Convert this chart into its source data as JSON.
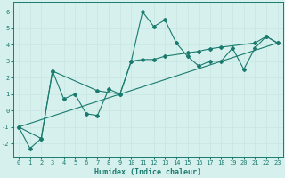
{
  "xlabel": "Humidex (Indice chaleur)",
  "bg_color": "#d6f0ed",
  "line_color": "#1a7a6e",
  "grid_color": "#c8e8e4",
  "spine_color": "#1a7a6e",
  "xlim": [
    -0.5,
    23.5
  ],
  "ylim": [
    -2.8,
    6.6
  ],
  "yticks": [
    -2,
    -1,
    0,
    1,
    2,
    3,
    4,
    5,
    6
  ],
  "xticks": [
    0,
    1,
    2,
    3,
    4,
    5,
    6,
    7,
    8,
    9,
    10,
    11,
    12,
    13,
    14,
    15,
    16,
    17,
    18,
    19,
    20,
    21,
    22,
    23
  ],
  "line1_x": [
    0,
    1,
    2,
    3,
    4,
    5,
    6,
    7,
    8,
    9,
    10,
    11,
    12,
    13,
    14,
    15,
    16,
    17,
    18,
    19,
    20,
    21,
    22,
    23
  ],
  "line1_y": [
    -1.0,
    -2.3,
    -1.7,
    2.4,
    0.7,
    1.0,
    -0.2,
    -0.3,
    1.3,
    1.0,
    3.0,
    6.0,
    5.1,
    5.5,
    4.1,
    3.3,
    2.7,
    3.0,
    3.0,
    3.8,
    2.5,
    3.8,
    4.5,
    4.1
  ],
  "line2_x": [
    0,
    2,
    3,
    7,
    9,
    10,
    11,
    12,
    13,
    15,
    16,
    17,
    18,
    21,
    22,
    23
  ],
  "line2_y": [
    -1.0,
    -1.7,
    2.4,
    1.2,
    1.0,
    3.0,
    3.1,
    3.1,
    3.3,
    3.5,
    3.6,
    3.75,
    3.85,
    4.1,
    4.5,
    4.1
  ],
  "line3_x": [
    0,
    23
  ],
  "line3_y": [
    -1.0,
    4.1
  ],
  "tick_fontsize": 5.0,
  "xlabel_fontsize": 6.0
}
